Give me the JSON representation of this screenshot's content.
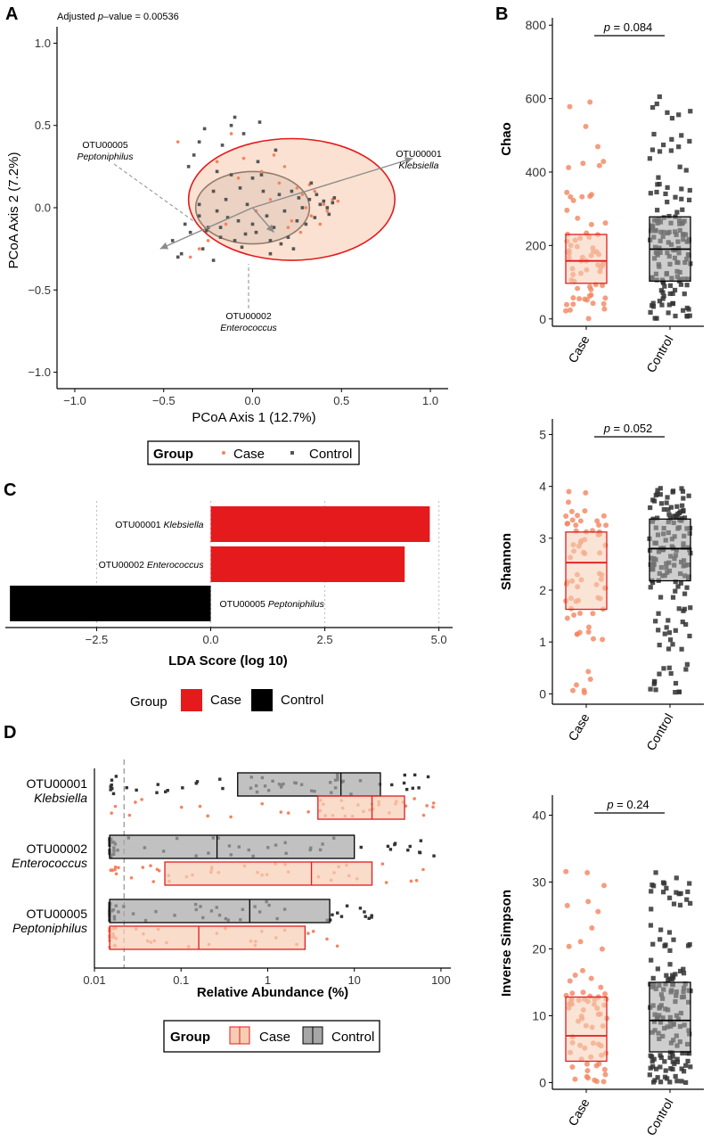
{
  "panels": {
    "a": "A",
    "b": "B",
    "c": "C",
    "d": "D"
  },
  "chart_data": [
    {
      "type": "scatter",
      "panel": "A",
      "annotation_prefix": "Adjusted ",
      "annotation_italic": "p",
      "annotation_suffix": "–value = 0.00536",
      "xlabel": "PCoA Axis 1 (12.7%)",
      "ylabel": "PCoA Axis 2 (7.2%)",
      "xlim": [
        -1.1,
        1.1
      ],
      "ylim": [
        -1.1,
        1.1
      ],
      "xticks": [
        -1.0,
        -0.5,
        0.0,
        0.5,
        1.0
      ],
      "xtick_labels": [
        "−1.0",
        "−0.5",
        "0.0",
        "0.5",
        "1.0"
      ],
      "yticks": [
        -1.0,
        -0.5,
        0.0,
        0.5,
        1.0
      ],
      "ytick_labels": [
        "−1.0",
        "−0.5",
        "0.0",
        "0.5",
        "1.0"
      ],
      "ellipses": [
        {
          "group": "Control",
          "cx": 0.0,
          "cy": 0.0,
          "rx": 0.32,
          "ry": 0.22,
          "angle": 0,
          "fill": "#bfbfbf",
          "stroke": "#000000"
        },
        {
          "group": "Case",
          "cx": 0.22,
          "cy": 0.05,
          "rx": 0.58,
          "ry": 0.37,
          "angle": 0,
          "fill": "#f6cdb4",
          "stroke": "#e41a1c"
        }
      ],
      "arrows": [
        {
          "id": "OTU00001",
          "taxon": "Klebsiella",
          "x": 0.9,
          "y": 0.3
        },
        {
          "id": "OTU00002",
          "taxon": "Enterococcus",
          "x": 0.12,
          "y": -0.15
        },
        {
          "id": "OTU00005",
          "taxon": "Peptoniphilus",
          "x": -0.52,
          "y": -0.25
        }
      ],
      "series": [
        {
          "name": "Case",
          "color": "#f4845f",
          "marker": "circle",
          "x": [
            0.45,
            0.4,
            0.33,
            0.28,
            0.2,
            0.15,
            0.05,
            -0.05,
            -0.12,
            -0.2,
            -0.25,
            0.35,
            0.42,
            0.48,
            0.3,
            0.22,
            0.1,
            -0.3,
            -0.35,
            0.25,
            0.38,
            0.18,
            0.02,
            -0.15,
            0.46,
            0.32,
            -0.42,
            0.12,
            0.27,
            -0.08
          ],
          "y": [
            0.05,
            0.02,
            -0.05,
            0.08,
            -0.12,
            0.15,
            0.22,
            0.3,
            0.45,
            0.28,
            -0.2,
            0.1,
            -0.02,
            0.04,
            0.0,
            -0.08,
            0.05,
            -0.25,
            -0.3,
            0.12,
            -0.1,
            0.25,
            -0.02,
            -0.1,
            0.06,
            0.14,
            0.4,
            0.32,
            -0.15,
            0.18
          ]
        },
        {
          "name": "Control",
          "color": "#555555",
          "marker": "square",
          "x": [
            -0.45,
            -0.4,
            -0.38,
            -0.35,
            -0.3,
            -0.28,
            -0.25,
            -0.22,
            -0.2,
            -0.18,
            -0.15,
            -0.12,
            -0.1,
            -0.08,
            -0.05,
            -0.03,
            0.0,
            0.02,
            0.05,
            0.08,
            0.1,
            0.12,
            0.15,
            0.18,
            0.2,
            0.22,
            0.25,
            0.28,
            0.3,
            0.32,
            0.35,
            0.38,
            0.4,
            0.42,
            0.45,
            -0.42,
            -0.33,
            -0.27,
            -0.17,
            -0.07,
            0.03,
            0.13,
            0.23,
            0.33,
            0.43,
            -0.2,
            -0.1,
            0.0,
            0.1,
            -0.3,
            -0.22,
            -0.14,
            -0.06,
            0.06,
            0.16,
            0.26,
            0.36,
            -0.36,
            -0.26,
            0.46,
            -0.12,
            -0.04,
            0.04,
            -0.3,
            -0.18
          ],
          "y": [
            -0.2,
            -0.28,
            -0.1,
            -0.15,
            -0.05,
            -0.25,
            -0.12,
            0.1,
            -0.02,
            -0.18,
            0.05,
            0.5,
            0.55,
            -0.08,
            0.45,
            0.02,
            -0.1,
            -0.15,
            0.2,
            -0.05,
            -0.2,
            -0.12,
            0.08,
            -0.02,
            -0.18,
            0.1,
            -0.08,
            0.0,
            -0.1,
            0.05,
            -0.06,
            0.02,
            0.04,
            0.0,
            0.03,
            -0.3,
            0.32,
            0.48,
            0.38,
            0.12,
            0.28,
            0.35,
            -0.25,
            0.15,
            -0.04,
            0.22,
            -0.2,
            0.18,
            -0.28,
            0.02,
            -0.32,
            -0.06,
            -0.24,
            0.1,
            -0.22,
            0.06,
            0.08,
            0.25,
            -0.14,
            0.06,
            0.2,
            -0.16,
            0.52,
            0.4,
            -0.12
          ]
        }
      ],
      "legend": {
        "title": "Group",
        "items": [
          "Case",
          "Control"
        ]
      }
    },
    {
      "type": "bar",
      "panel": "C",
      "orientation": "horizontal",
      "xlabel": "LDA Score (log 10)",
      "xlim": [
        -4.5,
        5.3
      ],
      "xticks": [
        -2.5,
        0.0,
        2.5,
        5.0
      ],
      "xtick_labels": [
        "−2.5",
        "0.0",
        "2.5",
        "5.0"
      ],
      "bars": [
        {
          "id": "OTU00001",
          "taxon": "Klebsiella",
          "value": 4.8,
          "group": "Case"
        },
        {
          "id": "OTU00002",
          "taxon": "Enterococcus",
          "value": 4.25,
          "group": "Case"
        },
        {
          "id": "OTU00005",
          "taxon": "Peptoniphilus",
          "value": -4.4,
          "group": "Control"
        }
      ],
      "colors": {
        "Case": "#e41a1c",
        "Control": "#000000"
      },
      "legend": {
        "title": "Group",
        "items": [
          "Case",
          "Control"
        ]
      }
    },
    {
      "type": "box",
      "panel": "D",
      "orientation": "horizontal",
      "xscale": "log",
      "xlabel": "Relative Abundance (%)",
      "xlim": [
        0.01,
        130
      ],
      "xticks": [
        0.01,
        0.1,
        1,
        10,
        100
      ],
      "xtick_labels": [
        "0.01",
        "0.1",
        "1",
        "10",
        "100"
      ],
      "threshold_line": 0.022,
      "otus": [
        {
          "id": "OTU00001",
          "taxon": "Klebsiella",
          "Control": {
            "q1": 0.45,
            "median": 7.0,
            "q3": 20,
            "min": 0.015,
            "max": 90
          },
          "Case": {
            "q1": 3.8,
            "median": 16,
            "q3": 38,
            "min": 0.015,
            "max": 100
          }
        },
        {
          "id": "OTU00002",
          "taxon": "Enterococcus",
          "Control": {
            "q1": 0.015,
            "median": 0.26,
            "q3": 10,
            "min": 0.015,
            "max": 90
          },
          "Case": {
            "q1": 0.065,
            "median": 3.2,
            "q3": 16,
            "min": 0.015,
            "max": 95
          }
        },
        {
          "id": "OTU00005",
          "taxon": "Peptoniphilus",
          "Control": {
            "q1": 0.015,
            "median": 0.62,
            "q3": 5.2,
            "min": 0.015,
            "max": 18
          },
          "Case": {
            "q1": 0.015,
            "median": 0.16,
            "q3": 2.7,
            "min": 0.015,
            "max": 8
          }
        }
      ],
      "legend": {
        "title": "Group",
        "items": [
          "Case",
          "Control"
        ]
      }
    },
    {
      "type": "box",
      "panel": "B",
      "subplot": "chao",
      "ylabel": "Chao",
      "ylim": [
        -20,
        820
      ],
      "yticks": [
        0,
        200,
        400,
        600,
        800
      ],
      "p_italic": "p",
      "p_text": " = 0.084",
      "categories": [
        "Case",
        "Control"
      ],
      "boxes": [
        {
          "group": "Case",
          "q1": 97,
          "median": 158,
          "q3": 230
        },
        {
          "group": "Control",
          "q1": 103,
          "median": 190,
          "q3": 278
        }
      ]
    },
    {
      "type": "box",
      "panel": "B",
      "subplot": "shannon",
      "ylabel": "Shannon",
      "ylim": [
        -0.2,
        5.3
      ],
      "yticks": [
        0,
        1,
        2,
        3,
        4,
        5
      ],
      "p_italic": "p",
      "p_text": " = 0.052",
      "categories": [
        "Case",
        "Control"
      ],
      "boxes": [
        {
          "group": "Case",
          "q1": 1.63,
          "median": 2.53,
          "q3": 3.12
        },
        {
          "group": "Control",
          "q1": 2.18,
          "median": 2.8,
          "q3": 3.37
        }
      ]
    },
    {
      "type": "box",
      "panel": "B",
      "subplot": "invsimpson",
      "ylabel": "Inverse Simpson",
      "ylim": [
        -1,
        43
      ],
      "yticks": [
        0,
        10,
        20,
        30,
        40
      ],
      "p_italic": "p",
      "p_text": " = 0.24",
      "categories": [
        "Case",
        "Control"
      ],
      "boxes": [
        {
          "group": "Case",
          "q1": 3.2,
          "median": 7.0,
          "q3": 12.8
        },
        {
          "group": "Control",
          "q1": 4.6,
          "median": 9.3,
          "q3": 15.0
        }
      ]
    }
  ]
}
